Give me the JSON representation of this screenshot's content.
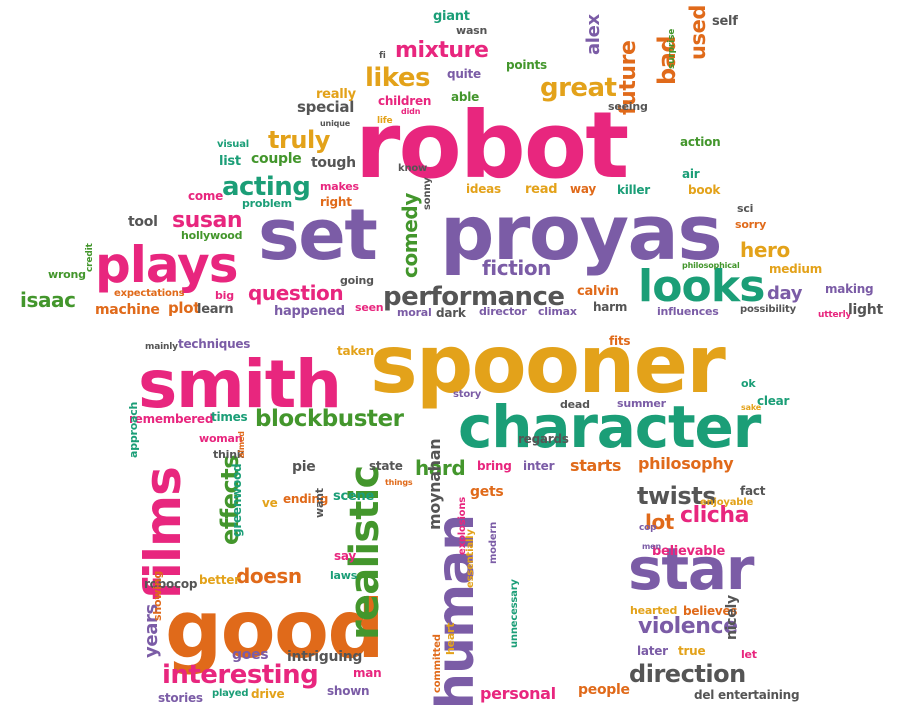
{
  "palette": {
    "pink": "#e8267e",
    "purple": "#7b5ca6",
    "gold": "#e3a21a",
    "green": "#43962c",
    "orange": "#e06a1a",
    "teal": "#1b9e77",
    "gray": "#555555"
  },
  "words": [
    "robot",
    "spooner",
    "smith",
    "proyas",
    "set",
    "character",
    "good",
    "star",
    "plays",
    "films",
    "human",
    "realistic",
    "looks",
    "performance",
    "blockbuster",
    "acting",
    "likes",
    "mixture",
    "great",
    "future",
    "bad",
    "used",
    "alex",
    "truly",
    "susan",
    "question",
    "comedy",
    "fiction",
    "hero",
    "isaac",
    "interesting",
    "direction",
    "violence",
    "doesn",
    "effects",
    "twists",
    "lot",
    "clicha",
    "hard",
    "philosophy",
    "moynahan",
    "years",
    "day",
    "special",
    "really",
    "children",
    "able",
    "quite",
    "points",
    "giant",
    "wasn",
    "self",
    "surprise",
    "couple",
    "tough",
    "list",
    "visual",
    "action",
    "air",
    "book",
    "killer",
    "sci",
    "sorry",
    "read",
    "way",
    "ideas",
    "sonny",
    "problem",
    "come",
    "tool",
    "hollywood",
    "wrong",
    "credit",
    "expectations",
    "machine",
    "plot",
    "learn",
    "big",
    "happened",
    "seen",
    "moral",
    "dark",
    "director",
    "climax",
    "harm",
    "influences",
    "possibility",
    "utterly",
    "light",
    "calvin",
    "medium",
    "making",
    "philosophical",
    "going",
    "taken",
    "fits",
    "techniques",
    "mainly",
    "remembered",
    "times",
    "woman",
    "think",
    "aimed",
    "story",
    "dead",
    "summer",
    "clear",
    "sake",
    "ok",
    "regards",
    "state",
    "bring",
    "inter",
    "starts",
    "pie",
    "things",
    "gets",
    "ending",
    "scene",
    "ve",
    "fact",
    "enjoyable",
    "approach",
    "greenwood",
    "want",
    "say",
    "laws",
    "better",
    "robocop",
    "showing",
    "goes",
    "intriguing",
    "man",
    "shown",
    "drive",
    "played",
    "stories",
    "explosions",
    "modern",
    "essentially",
    "unnecessary",
    "committed",
    "heart",
    "personal",
    "people",
    "believable",
    "cop",
    "men",
    "hearted",
    "believes",
    "nicely",
    "later",
    "true",
    "let",
    "del",
    "entertaining",
    "seeing",
    "didn",
    "life",
    "unique",
    "know",
    "makes",
    "right",
    "fi"
  ]
}
